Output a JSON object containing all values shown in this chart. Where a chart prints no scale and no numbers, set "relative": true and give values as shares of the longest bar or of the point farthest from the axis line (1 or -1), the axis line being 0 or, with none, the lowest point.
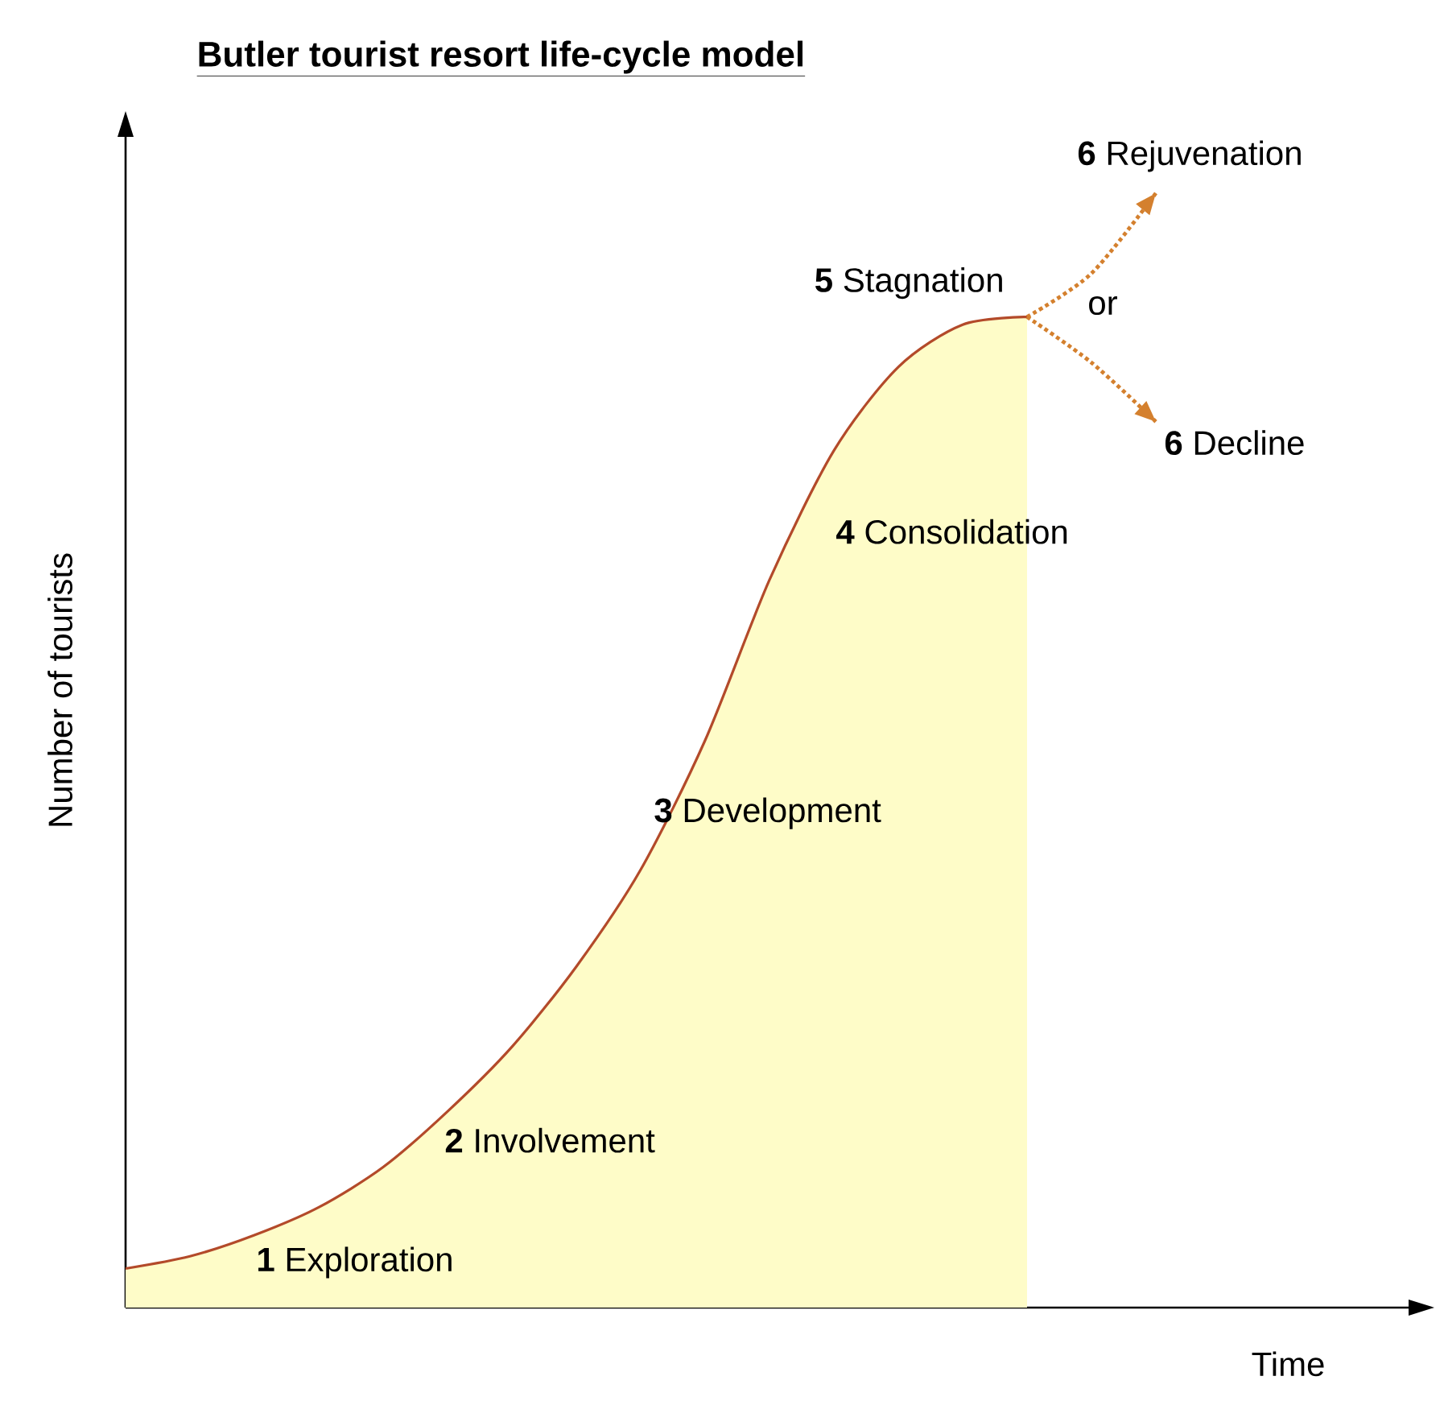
{
  "chart_data": {
    "type": "area",
    "title": "Butler tourist resort life-cycle model",
    "xlabel": "Time",
    "ylabel": "Number of tourists",
    "relative": true,
    "categories": [
      null,
      null,
      null,
      null,
      null,
      null,
      null,
      null,
      null,
      null,
      null,
      null,
      null,
      null,
      null,
      null,
      null
    ],
    "series": [
      {
        "color": "#b34a2a",
        "values": [
          0.035,
          0.046,
          0.065,
          0.09,
          0.126,
          0.176,
          0.234,
          0.306,
          0.393,
          0.509,
          0.653,
          0.769,
          0.844,
          0.882,
          0.889,
          null,
          null
        ]
      },
      {
        "type": "line",
        "line_style": "dotted",
        "color": "#d4802e",
        "values": [
          null,
          null,
          null,
          null,
          null,
          null,
          null,
          null,
          null,
          null,
          null,
          null,
          null,
          null,
          0.889,
          0.928,
          1.0
        ]
      },
      {
        "type": "line",
        "line_style": "dotted",
        "color": "#d4802e",
        "values": [
          null,
          null,
          null,
          null,
          null,
          null,
          null,
          null,
          null,
          null,
          null,
          null,
          null,
          null,
          0.889,
          0.848,
          0.795
        ]
      }
    ],
    "annotations": [
      "**1** Exploration",
      "**2** Involvement",
      "**3** Development",
      "**4** Consolidation",
      "**5** Stagnation",
      "or",
      "**6** Rejuvenation",
      "**6** Decline"
    ]
  }
}
